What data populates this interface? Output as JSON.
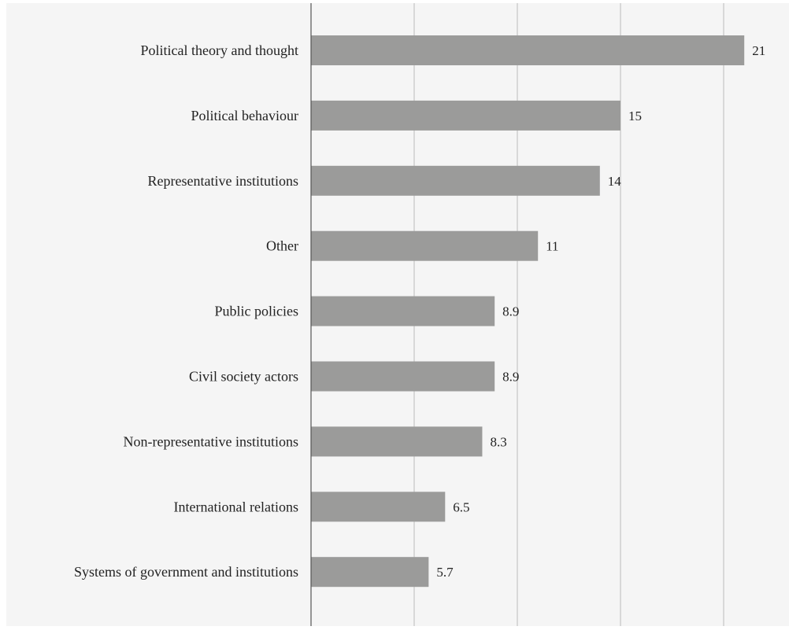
{
  "chart_data": {
    "type": "bar",
    "orientation": "horizontal",
    "title": "",
    "xlabel": "",
    "ylabel": "",
    "categories": [
      "Political theory and thought",
      "Political behaviour",
      "Representative institutions",
      "Other",
      "Public policies",
      "Civil society actors",
      "Non-representative institutions",
      "International relations",
      "Systems of government and institutions"
    ],
    "values": [
      21,
      15,
      14,
      11,
      8.9,
      8.9,
      8.3,
      6.5,
      5.7
    ],
    "value_labels": [
      "21",
      "15",
      "14",
      "11",
      "8.9",
      "8.9",
      "8.3",
      "6.5",
      "5.7"
    ],
    "xlim": [
      0,
      22
    ],
    "gridlines_at": [
      0,
      5,
      10,
      15,
      20
    ],
    "grid": true,
    "legend": "none",
    "colors": {
      "plot_background": "#f5f5f5",
      "bar": "#9b9b9a",
      "gridline": "#bcbcbc",
      "axis": "#555555",
      "text": "#222222"
    }
  }
}
